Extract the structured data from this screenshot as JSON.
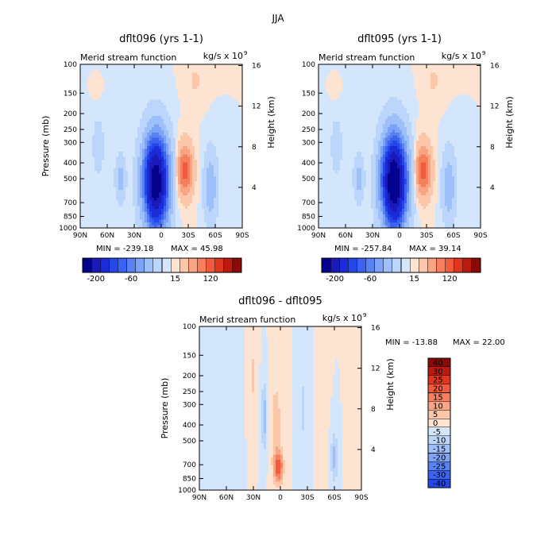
{
  "figure": {
    "supertitle": "JJA",
    "colors": {
      "neg": [
        "#04038e",
        "#1a1ab8",
        "#1c2bd8",
        "#2447e8",
        "#3b62f0",
        "#5981f0",
        "#7ca3f5",
        "#9ec0fa",
        "#bcd5fb",
        "#d4e6fc"
      ],
      "pos": [
        "#fde3d2",
        "#fcc7a8",
        "#f9a583",
        "#f6805e",
        "#f15a3c",
        "#e0351f",
        "#bb1a10",
        "#8a0a05"
      ]
    }
  },
  "chart_data": [
    {
      "type": "heatmap",
      "title": "dflt096 (yrs 1-1)",
      "subtitle": "Merid stream function",
      "units": "kg/s x 10",
      "units_exp": "9",
      "xlabel": "",
      "ylabel": "Pressure (mb)",
      "ylabel_right": "Height (km)",
      "xticks": [
        "90N",
        "60N",
        "30N",
        "0",
        "30S",
        "60S",
        "90S"
      ],
      "xvalues": [
        90,
        60,
        30,
        0,
        -30,
        -60,
        -90
      ],
      "yticks": [
        "100",
        "150",
        "200",
        "250",
        "300",
        "400",
        "500",
        "700",
        "850",
        "1000"
      ],
      "yvalues": [
        100,
        150,
        200,
        250,
        300,
        400,
        500,
        700,
        850,
        1000
      ],
      "yticks_right": [
        "16",
        "12",
        "8",
        "4"
      ],
      "yvalues_right": [
        16,
        12,
        8,
        4
      ],
      "ylim": [
        1000,
        100
      ],
      "yscale": "log",
      "xlim": [
        90,
        -90
      ],
      "min_label": "MIN = -239.18",
      "max_label": "MAX = 45.98",
      "min": -239.18,
      "max": 45.98,
      "colorbar": {
        "orientation": "horizontal",
        "labels": [
          "-200",
          "-60",
          "15",
          "120"
        ],
        "levels": [
          -200,
          -160,
          -120,
          -100,
          -80,
          -60,
          -40,
          -20,
          -5,
          0,
          5,
          15,
          30,
          45,
          60,
          80,
          120,
          160,
          200
        ]
      }
    },
    {
      "type": "heatmap",
      "title": "dflt095 (yrs 1-1)",
      "subtitle": "Merid stream function",
      "units": "kg/s x 10",
      "units_exp": "9",
      "xlabel": "",
      "ylabel": "",
      "ylabel_right": "Height (km)",
      "xticks": [
        "90N",
        "60N",
        "30N",
        "0",
        "30S",
        "60S",
        "90S"
      ],
      "xvalues": [
        90,
        60,
        30,
        0,
        -30,
        -60,
        -90
      ],
      "yticks": [
        "100",
        "150",
        "200",
        "250",
        "300",
        "400",
        "500",
        "700",
        "850",
        "1000"
      ],
      "yvalues": [
        100,
        150,
        200,
        250,
        300,
        400,
        500,
        700,
        850,
        1000
      ],
      "yticks_right": [
        "16",
        "12",
        "8",
        "4"
      ],
      "yvalues_right": [
        16,
        12,
        8,
        4
      ],
      "ylim": [
        1000,
        100
      ],
      "yscale": "log",
      "xlim": [
        90,
        -90
      ],
      "min_label": "MIN = -257.84",
      "max_label": "MAX = 39.14",
      "min": -257.84,
      "max": 39.14,
      "colorbar": {
        "orientation": "horizontal",
        "labels": [
          "-200",
          "-60",
          "15",
          "120"
        ],
        "levels": [
          -200,
          -160,
          -120,
          -100,
          -80,
          -60,
          -40,
          -20,
          -5,
          0,
          5,
          15,
          30,
          45,
          60,
          80,
          120,
          160,
          200
        ]
      }
    },
    {
      "type": "heatmap",
      "title": "dflt096 - dflt095",
      "subtitle": "Merid stream function",
      "units": "kg/s x 10",
      "units_exp": "9",
      "xlabel": "",
      "ylabel": "Pressure (mb)",
      "ylabel_right": "Height (km)",
      "xticks": [
        "90N",
        "60N",
        "30N",
        "0",
        "30S",
        "60S",
        "90S"
      ],
      "xvalues": [
        90,
        60,
        30,
        0,
        -30,
        -60,
        -90
      ],
      "yticks": [
        "100",
        "150",
        "200",
        "250",
        "300",
        "400",
        "500",
        "700",
        "850",
        "1000"
      ],
      "yvalues": [
        100,
        150,
        200,
        250,
        300,
        400,
        500,
        700,
        850,
        1000
      ],
      "yticks_right": [
        "16",
        "12",
        "8",
        "4"
      ],
      "yvalues_right": [
        16,
        12,
        8,
        4
      ],
      "ylim": [
        1000,
        100
      ],
      "yscale": "log",
      "xlim": [
        90,
        -90
      ],
      "min_label": "MIN = -13.88",
      "max_label": "MAX = 22.00",
      "min": -13.88,
      "max": 22.0,
      "colorbar": {
        "orientation": "vertical",
        "labels": [
          "40",
          "30",
          "25",
          "20",
          "15",
          "10",
          "5",
          "0",
          "-5",
          "-10",
          "-15",
          "-20",
          "-25",
          "-30",
          "-40"
        ],
        "levels": [
          40,
          30,
          25,
          20,
          15,
          10,
          5,
          0,
          -5,
          -10,
          -15,
          -20,
          -25,
          -30,
          -40
        ]
      }
    }
  ]
}
